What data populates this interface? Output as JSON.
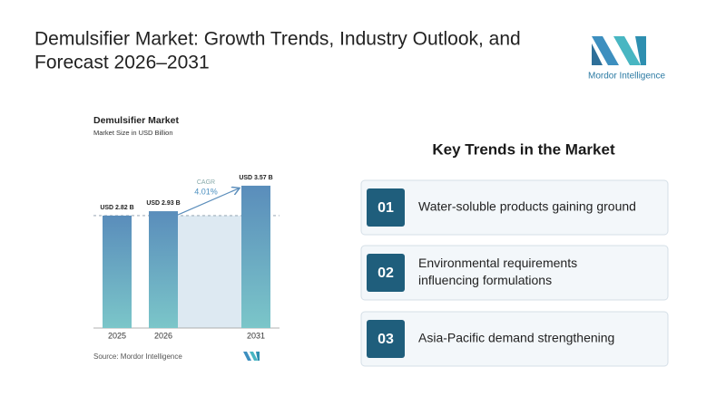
{
  "header": {
    "title_lines": [
      "Demulsifier Market: Growth Trends, Industry Outlook, and",
      "Forecast 2026–2031"
    ],
    "logo_text": "Mordor Intelligence"
  },
  "chart_data": {
    "type": "bar",
    "title": "Demulsifier Market",
    "subtitle": "Market Size in USD Billion",
    "categories": [
      "2025",
      "2026",
      "2031"
    ],
    "values": [
      2.82,
      2.93,
      3.57
    ],
    "value_labels": [
      "USD 2.82 B",
      "USD 2.93 B",
      "USD 3.57 B"
    ],
    "ylim": [
      0,
      4
    ],
    "gradient": [
      "#5a8dbb",
      "#7bc6c9"
    ],
    "cagr_label": "CAGR",
    "cagr_value": "4.01%",
    "source": "Source: Mordor Intelligence"
  },
  "trends": {
    "title": "Key Trends in the Market",
    "items": [
      {
        "number": "01",
        "lines": [
          "Water-soluble products gaining ground"
        ]
      },
      {
        "number": "02",
        "lines": [
          "Environmental requirements",
          "influencing formulations"
        ]
      },
      {
        "number": "03",
        "lines": [
          "Asia-Pacific demand strengthening"
        ]
      }
    ]
  }
}
